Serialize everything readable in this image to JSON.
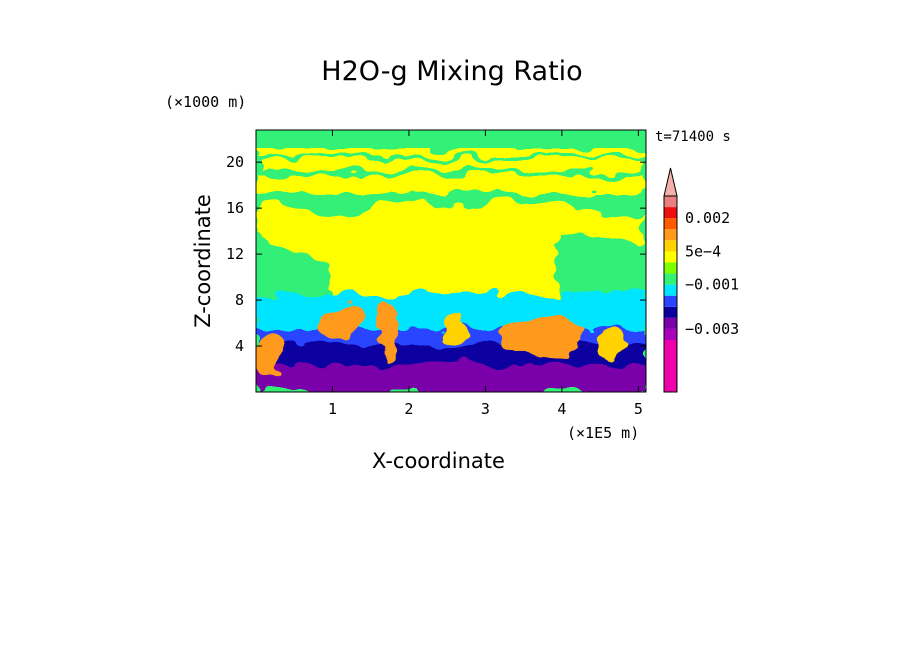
{
  "chart_data": {
    "type": "heatmap",
    "title": "H2O-g Mixing Ratio",
    "xlabel": "X-coordinate",
    "ylabel": "Z-coordinate",
    "x_units": "(×1E5 m)",
    "y_units": "(×1000 m)",
    "time_label": "t=71400 s",
    "xlim": [
      0,
      5.1
    ],
    "ylim": [
      0,
      22.8
    ],
    "x_ticks": [
      1,
      2,
      3,
      4,
      5
    ],
    "x_tick_labels": [
      "1",
      "2",
      "3",
      "4",
      "5"
    ],
    "y_ticks": [
      4,
      8,
      12,
      16,
      20
    ],
    "y_tick_labels": [
      "4",
      "8",
      "12",
      "16",
      "20"
    ],
    "colorbar": {
      "levels": [
        -0.005,
        -0.004,
        -0.003,
        -0.0025,
        -0.002,
        -0.0015,
        -0.001,
        -0.0005,
        0,
        0.0005,
        0.001,
        0.0015,
        0.002,
        0.0025,
        0.003
      ],
      "colors": [
        "#ee00aa",
        "#aa00bb",
        "#7a00aa",
        "#0a00a0",
        "#2b44ff",
        "#00e5ff",
        "#33f077",
        "#7cff00",
        "#ffff00",
        "#ffd200",
        "#ff9a1a",
        "#ff5a00",
        "#ee1010",
        "#e98080",
        "#f2b0a8"
      ],
      "tick_labels": [
        {
          "level": 0.002,
          "label": "0.002"
        },
        {
          "level": 0.0005,
          "label": "5e−4"
        },
        {
          "level": -0.001,
          "label": "−0.001"
        },
        {
          "level": -0.003,
          "label": "−0.003"
        }
      ],
      "extend": "max"
    },
    "description_layers": [
      {
        "z_range": [
          0,
          1.5
        ],
        "value": -0.004
      },
      {
        "z_range": [
          1.5,
          5
        ],
        "value": -0.002
      },
      {
        "z_range": [
          5,
          8
        ],
        "value": -0.001
      },
      {
        "z_range": [
          8,
          17
        ],
        "value": 0.0005
      },
      {
        "z_range": [
          17,
          22.8
        ],
        "value": 0
      }
    ]
  }
}
